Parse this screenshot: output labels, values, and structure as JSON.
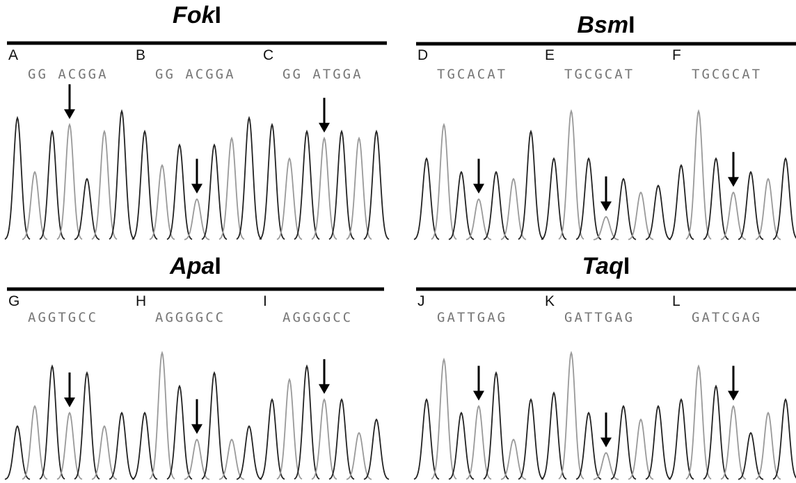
{
  "groups": [
    {
      "title": {
        "italic": "Fok",
        "plain": "I"
      },
      "panels": [
        {
          "label": "A",
          "sequence": "GG ACGGA"
        },
        {
          "label": "B",
          "sequence": "GG ACGGA"
        },
        {
          "label": "C",
          "sequence": "GG ATGGA"
        }
      ]
    },
    {
      "title": {
        "italic": "Bsm",
        "plain": "I"
      },
      "panels": [
        {
          "label": "D",
          "sequence": "TGCACAT"
        },
        {
          "label": "E",
          "sequence": "TGCGCAT"
        },
        {
          "label": "F",
          "sequence": "TGCGCAT"
        }
      ]
    },
    {
      "title": {
        "italic": "Apa",
        "plain": "I"
      },
      "panels": [
        {
          "label": "G",
          "sequence": "AGGTGCC"
        },
        {
          "label": "H",
          "sequence": "AGGGGCC"
        },
        {
          "label": "I",
          "sequence": "AGGGGCC"
        }
      ]
    },
    {
      "title": {
        "italic": "Taq",
        "plain": "I"
      },
      "panels": [
        {
          "label": "J",
          "sequence": "GATTGAG"
        },
        {
          "label": "K",
          "sequence": "GATTGAG"
        },
        {
          "label": "L",
          "sequence": "GATCGAG"
        }
      ]
    }
  ]
}
